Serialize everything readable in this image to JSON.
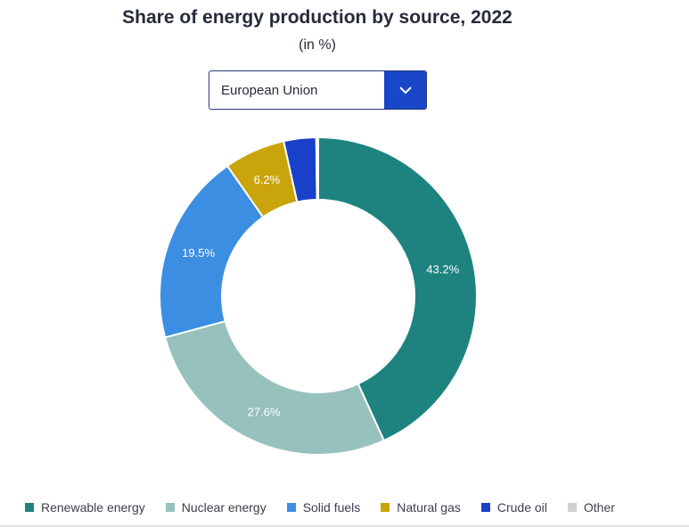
{
  "header": {
    "title": "Share of energy production by source, 2022",
    "subtitle": "(in %)"
  },
  "selector": {
    "value": "European Union",
    "icon": "chevron-down-icon"
  },
  "colors": {
    "renewable": "#1e837f",
    "nuclear": "#97c1bd",
    "solid": "#3c8ee3",
    "gas": "#c9a40b",
    "crude": "#1840c8",
    "other": "#d0d0d0",
    "accent": "#1a46c8"
  },
  "chart_data": {
    "type": "pie",
    "variant": "donut",
    "title": "Share of energy production by source, 2022",
    "subtitle": "(in %)",
    "categories": [
      "Renewable energy",
      "Nuclear energy",
      "Solid fuels",
      "Natural gas",
      "Crude oil",
      "Other"
    ],
    "values": [
      43.2,
      27.6,
      19.5,
      6.2,
      3.3,
      0.2
    ],
    "data_labels": [
      "43.2%",
      "27.6%",
      "19.5%",
      "6.2%",
      "",
      ""
    ],
    "colors": [
      "#1e837f",
      "#97c1bd",
      "#3c8ee3",
      "#c9a40b",
      "#1840c8",
      "#d0d0d0"
    ],
    "legend_position": "bottom"
  }
}
